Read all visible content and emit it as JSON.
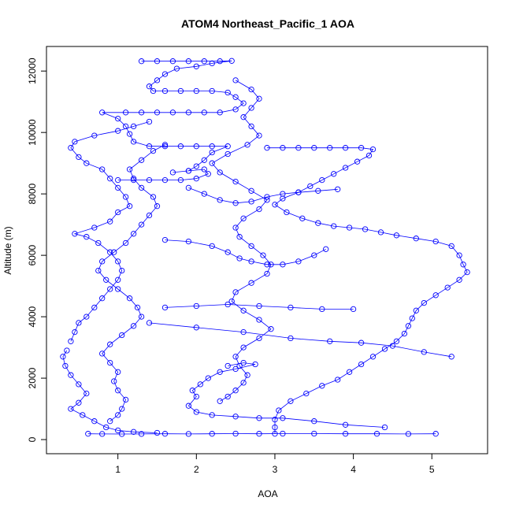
{
  "chart_data": {
    "type": "scatter",
    "title": "ATOM4 Northeast_Pacific_1 AOA",
    "xlabel": "AOA",
    "ylabel": "Altitude (m)",
    "xlim": [
      0.09,
      5.71
    ],
    "ylim": [
      -460,
      12800
    ],
    "xticks": [
      1,
      2,
      3,
      4,
      5
    ],
    "yticks": [
      0,
      2000,
      4000,
      6000,
      8000,
      10000,
      12000
    ],
    "grid": false,
    "legend": "none",
    "marker": "open-circle",
    "connect_points": true,
    "color": "#0000ff",
    "series": [
      {
        "points": [
          [
            0.62,
            190
          ],
          [
            0.8,
            185
          ],
          [
            1.05,
            180
          ],
          [
            1.3,
            185
          ],
          [
            1.6,
            190
          ],
          [
            1.9,
            185
          ],
          [
            2.2,
            190
          ],
          [
            2.5,
            195
          ],
          [
            2.8,
            190
          ],
          [
            3.1,
            195
          ],
          [
            3.5,
            195
          ],
          [
            3.9,
            190
          ],
          [
            4.3,
            190
          ],
          [
            4.7,
            185
          ],
          [
            5.05,
            190
          ]
        ]
      },
      {
        "points": [
          [
            0.35,
            2900
          ],
          [
            0.3,
            2700
          ],
          [
            0.33,
            2400
          ],
          [
            0.4,
            2100
          ],
          [
            0.5,
            1800
          ],
          [
            0.6,
            1500
          ],
          [
            0.5,
            1200
          ],
          [
            0.4,
            1000
          ],
          [
            0.55,
            800
          ],
          [
            0.7,
            600
          ],
          [
            0.85,
            400
          ],
          [
            1.0,
            300
          ],
          [
            1.2,
            250
          ],
          [
            1.5,
            220
          ]
        ]
      },
      {
        "points": [
          [
            0.4,
            3200
          ],
          [
            0.45,
            3500
          ],
          [
            0.5,
            3800
          ],
          [
            0.6,
            4000
          ],
          [
            0.7,
            4300
          ],
          [
            0.8,
            4600
          ],
          [
            0.9,
            4900
          ],
          [
            1.0,
            5200
          ],
          [
            1.05,
            5500
          ],
          [
            1.0,
            5800
          ],
          [
            0.9,
            6100
          ],
          [
            0.75,
            6400
          ],
          [
            0.6,
            6600
          ],
          [
            0.45,
            6700
          ],
          [
            0.7,
            6900
          ],
          [
            0.9,
            7100
          ],
          [
            1.0,
            7400
          ],
          [
            1.15,
            7600
          ],
          [
            1.1,
            7900
          ],
          [
            1.0,
            8200
          ],
          [
            0.9,
            8500
          ],
          [
            0.8,
            8800
          ],
          [
            0.6,
            9000
          ],
          [
            0.5,
            9200
          ],
          [
            0.4,
            9500
          ],
          [
            0.45,
            9700
          ],
          [
            0.7,
            9900
          ],
          [
            1.0,
            10050
          ],
          [
            1.2,
            10200
          ],
          [
            1.4,
            10350
          ]
        ]
      },
      {
        "points": [
          [
            0.9,
            600
          ],
          [
            1.0,
            800
          ],
          [
            1.05,
            1000
          ],
          [
            1.1,
            1300
          ],
          [
            1.0,
            1600
          ],
          [
            0.95,
            1900
          ],
          [
            1.0,
            2200
          ],
          [
            0.9,
            2500
          ],
          [
            0.8,
            2800
          ],
          [
            0.9,
            3100
          ],
          [
            1.05,
            3400
          ],
          [
            1.2,
            3700
          ],
          [
            1.3,
            4000
          ],
          [
            1.25,
            4300
          ],
          [
            1.15,
            4600
          ],
          [
            1.0,
            4900
          ],
          [
            0.85,
            5200
          ],
          [
            0.75,
            5500
          ],
          [
            0.8,
            5800
          ],
          [
            0.95,
            6100
          ],
          [
            1.1,
            6400
          ],
          [
            1.2,
            6700
          ],
          [
            1.3,
            7000
          ],
          [
            1.4,
            7300
          ],
          [
            1.5,
            7600
          ],
          [
            1.45,
            7900
          ],
          [
            1.3,
            8200
          ],
          [
            1.2,
            8500
          ],
          [
            1.15,
            8800
          ],
          [
            1.3,
            9100
          ],
          [
            1.45,
            9400
          ],
          [
            1.6,
            9600
          ]
        ]
      },
      {
        "points": [
          [
            1.3,
            12320
          ],
          [
            1.5,
            12320
          ],
          [
            1.7,
            12320
          ],
          [
            1.9,
            12320
          ],
          [
            2.1,
            12320
          ],
          [
            2.3,
            12320
          ],
          [
            2.45,
            12330
          ],
          [
            2.2,
            12250
          ],
          [
            2.0,
            12150
          ],
          [
            1.75,
            12080
          ],
          [
            1.6,
            11900
          ],
          [
            1.5,
            11700
          ],
          [
            1.4,
            11500
          ],
          [
            1.45,
            11350
          ],
          [
            1.6,
            11350
          ],
          [
            1.8,
            11350
          ],
          [
            2.0,
            11350
          ],
          [
            2.2,
            11350
          ],
          [
            2.4,
            11300
          ],
          [
            2.5,
            11150
          ],
          [
            2.6,
            10950
          ],
          [
            2.5,
            10750
          ],
          [
            2.3,
            10650
          ],
          [
            2.1,
            10650
          ],
          [
            1.9,
            10650
          ],
          [
            1.7,
            10650
          ],
          [
            1.5,
            10650
          ],
          [
            1.3,
            10650
          ],
          [
            1.1,
            10650
          ],
          [
            0.8,
            10650
          ],
          [
            1.0,
            10450
          ],
          [
            1.1,
            10200
          ],
          [
            1.15,
            9950
          ],
          [
            1.2,
            9700
          ],
          [
            1.4,
            9550
          ],
          [
            1.6,
            9550
          ],
          [
            1.8,
            9550
          ],
          [
            2.0,
            9550
          ],
          [
            2.2,
            9550
          ],
          [
            2.4,
            9550
          ],
          [
            2.2,
            9350
          ],
          [
            2.1,
            9100
          ],
          [
            2.0,
            8900
          ],
          [
            1.9,
            8750
          ],
          [
            1.7,
            8700
          ],
          [
            1.9,
            8750
          ],
          [
            2.1,
            8800
          ],
          [
            2.15,
            8650
          ],
          [
            2.0,
            8500
          ],
          [
            1.8,
            8450
          ],
          [
            1.6,
            8450
          ],
          [
            1.4,
            8450
          ],
          [
            1.2,
            8450
          ],
          [
            1.0,
            8450
          ]
        ]
      },
      {
        "points": [
          [
            2.3,
            1250
          ],
          [
            2.4,
            1400
          ],
          [
            2.5,
            1600
          ],
          [
            2.6,
            1850
          ],
          [
            2.65,
            2100
          ],
          [
            2.55,
            2400
          ],
          [
            2.5,
            2700
          ],
          [
            2.6,
            3000
          ],
          [
            2.8,
            3300
          ],
          [
            2.95,
            3600
          ],
          [
            2.8,
            3900
          ],
          [
            2.6,
            4200
          ],
          [
            2.45,
            4500
          ],
          [
            2.5,
            4800
          ],
          [
            2.7,
            5100
          ],
          [
            2.9,
            5400
          ],
          [
            2.95,
            5700
          ],
          [
            2.85,
            6000
          ],
          [
            2.7,
            6300
          ],
          [
            2.55,
            6600
          ],
          [
            2.5,
            6900
          ],
          [
            2.6,
            7200
          ],
          [
            2.8,
            7500
          ],
          [
            2.9,
            7800
          ],
          [
            2.7,
            8100
          ],
          [
            2.5,
            8400
          ],
          [
            2.3,
            8700
          ],
          [
            2.2,
            9000
          ],
          [
            2.4,
            9300
          ],
          [
            2.65,
            9600
          ],
          [
            2.8,
            9900
          ],
          [
            2.7,
            10200
          ],
          [
            2.6,
            10500
          ],
          [
            2.7,
            10800
          ],
          [
            2.8,
            11100
          ],
          [
            2.7,
            11400
          ],
          [
            2.5,
            11700
          ]
        ]
      },
      {
        "points": [
          [
            2.9,
            9500
          ],
          [
            3.1,
            9500
          ],
          [
            3.3,
            9500
          ],
          [
            3.5,
            9500
          ],
          [
            3.7,
            9500
          ],
          [
            3.9,
            9500
          ],
          [
            4.1,
            9500
          ],
          [
            4.25,
            9450
          ],
          [
            4.2,
            9250
          ],
          [
            4.05,
            9050
          ],
          [
            3.9,
            8850
          ],
          [
            3.75,
            8650
          ],
          [
            3.6,
            8450
          ],
          [
            3.45,
            8250
          ],
          [
            3.3,
            8050
          ],
          [
            3.1,
            7850
          ],
          [
            3.0,
            7650
          ],
          [
            3.15,
            7400
          ],
          [
            3.35,
            7200
          ],
          [
            3.55,
            7050
          ],
          [
            3.75,
            6950
          ],
          [
            3.95,
            6900
          ],
          [
            4.15,
            6850
          ],
          [
            4.35,
            6750
          ],
          [
            4.55,
            6650
          ],
          [
            4.8,
            6550
          ],
          [
            5.05,
            6450
          ],
          [
            5.25,
            6300
          ],
          [
            5.35,
            6000
          ],
          [
            5.4,
            5700
          ],
          [
            5.45,
            5450
          ],
          [
            5.35,
            5200
          ],
          [
            5.2,
            4950
          ],
          [
            5.05,
            4700
          ],
          [
            4.9,
            4450
          ],
          [
            4.8,
            4200
          ],
          [
            4.75,
            3950
          ],
          [
            4.7,
            3700
          ],
          [
            4.65,
            3450
          ],
          [
            4.55,
            3200
          ],
          [
            4.4,
            2950
          ],
          [
            4.25,
            2700
          ],
          [
            4.1,
            2450
          ],
          [
            3.95,
            2200
          ],
          [
            3.8,
            1950
          ],
          [
            3.6,
            1750
          ],
          [
            3.4,
            1500
          ],
          [
            3.2,
            1250
          ],
          [
            3.05,
            950
          ],
          [
            3.0,
            650
          ],
          [
            3.0,
            400
          ],
          [
            3.0,
            190
          ]
        ]
      },
      {
        "points": [
          [
            2.4,
            2400
          ],
          [
            2.6,
            2500
          ],
          [
            2.75,
            2450
          ],
          [
            2.5,
            2300
          ],
          [
            2.3,
            2200
          ],
          [
            2.15,
            2000
          ],
          [
            2.05,
            1800
          ],
          [
            1.95,
            1600
          ],
          [
            2.0,
            1400
          ],
          [
            1.9,
            1100
          ],
          [
            2.0,
            900
          ],
          [
            2.2,
            800
          ],
          [
            2.5,
            750
          ],
          [
            2.8,
            700
          ],
          [
            3.1,
            700
          ],
          [
            3.5,
            600
          ],
          [
            3.9,
            480
          ],
          [
            4.4,
            400
          ]
        ]
      },
      {
        "points": [
          [
            1.4,
            3800
          ],
          [
            2.0,
            3650
          ],
          [
            2.6,
            3500
          ],
          [
            3.2,
            3300
          ],
          [
            3.7,
            3200
          ],
          [
            4.1,
            3150
          ],
          [
            4.5,
            3050
          ],
          [
            4.9,
            2850
          ],
          [
            5.25,
            2700
          ]
        ]
      },
      {
        "points": [
          [
            1.6,
            4300
          ],
          [
            2.0,
            4350
          ],
          [
            2.4,
            4400
          ],
          [
            2.8,
            4350
          ],
          [
            3.2,
            4300
          ],
          [
            3.6,
            4250
          ],
          [
            4.0,
            4250
          ]
        ]
      },
      {
        "points": [
          [
            1.9,
            8200
          ],
          [
            2.1,
            8000
          ],
          [
            2.3,
            7800
          ],
          [
            2.5,
            7700
          ],
          [
            2.7,
            7750
          ],
          [
            2.9,
            7900
          ],
          [
            3.1,
            8000
          ],
          [
            3.3,
            8050
          ],
          [
            3.55,
            8100
          ],
          [
            3.8,
            8150
          ]
        ]
      },
      {
        "points": [
          [
            1.6,
            6500
          ],
          [
            1.9,
            6450
          ],
          [
            2.2,
            6300
          ],
          [
            2.4,
            6100
          ],
          [
            2.55,
            5900
          ],
          [
            2.7,
            5800
          ],
          [
            2.9,
            5700
          ],
          [
            3.1,
            5700
          ],
          [
            3.3,
            5800
          ],
          [
            3.5,
            6000
          ],
          [
            3.65,
            6200
          ]
        ]
      }
    ]
  }
}
